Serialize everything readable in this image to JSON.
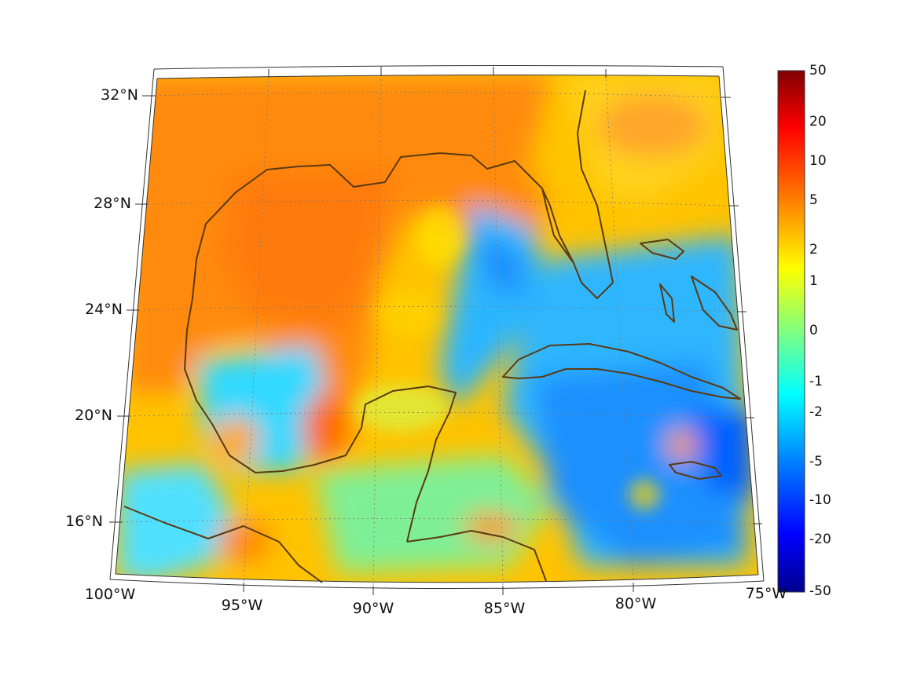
{
  "map": {
    "projection": "lambert-conformal",
    "extent": {
      "lon": [
        -100,
        -75
      ],
      "lat": [
        15,
        32
      ]
    },
    "field": "diverging anomaly field (jet colormap)",
    "coastline_color": "#5a3a12",
    "gridline_color": "#888888"
  },
  "lat_labels": [
    "32°N",
    "28°N",
    "24°N",
    "20°N",
    "16°N"
  ],
  "lon_labels": [
    "100°W",
    "95°W",
    "90°W",
    "85°W",
    "80°W",
    "75°W"
  ],
  "colorbar": {
    "colormap": "jet",
    "ticks": [
      "50",
      "20",
      "10",
      "5",
      "2",
      "1",
      "0",
      "-1",
      "-2",
      "-5",
      "-10",
      "-20",
      "-50"
    ],
    "colors": [
      "#00008f",
      "#0000ff",
      "#0080ff",
      "#00ffff",
      "#80ff80",
      "#ffff00",
      "#ff8000",
      "#ff0000",
      "#800000"
    ]
  }
}
